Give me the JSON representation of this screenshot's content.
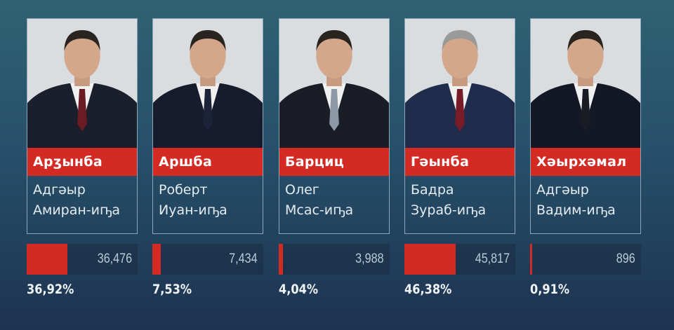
{
  "accent_color": "#d42a24",
  "candidates": [
    {
      "surname": "Арӡынба",
      "given": "Адгәыр",
      "patronymic": "Амиран-иҧа",
      "votes": "36,476",
      "percent": "36,92%",
      "share": 36.92
    },
    {
      "surname": "Аршба",
      "given": "Роберт",
      "patronymic": "Иуан-иҧа",
      "votes": "7,434",
      "percent": "7,53%",
      "share": 7.53
    },
    {
      "surname": "Барциц",
      "given": "Олег",
      "patronymic": "Мсас-иҧа",
      "votes": "3,988",
      "percent": "4,04%",
      "share": 4.04
    },
    {
      "surname": "Гәынба",
      "given": "Бадра",
      "patronymic": "Зураб-иҧа",
      "votes": "45,817",
      "percent": "46,38%",
      "share": 46.38
    },
    {
      "surname": "Хәырхәмал",
      "given": "Адгәыр",
      "patronymic": "Вадим-иҧа",
      "votes": "896",
      "percent": "0,91%",
      "share": 0.91
    }
  ]
}
